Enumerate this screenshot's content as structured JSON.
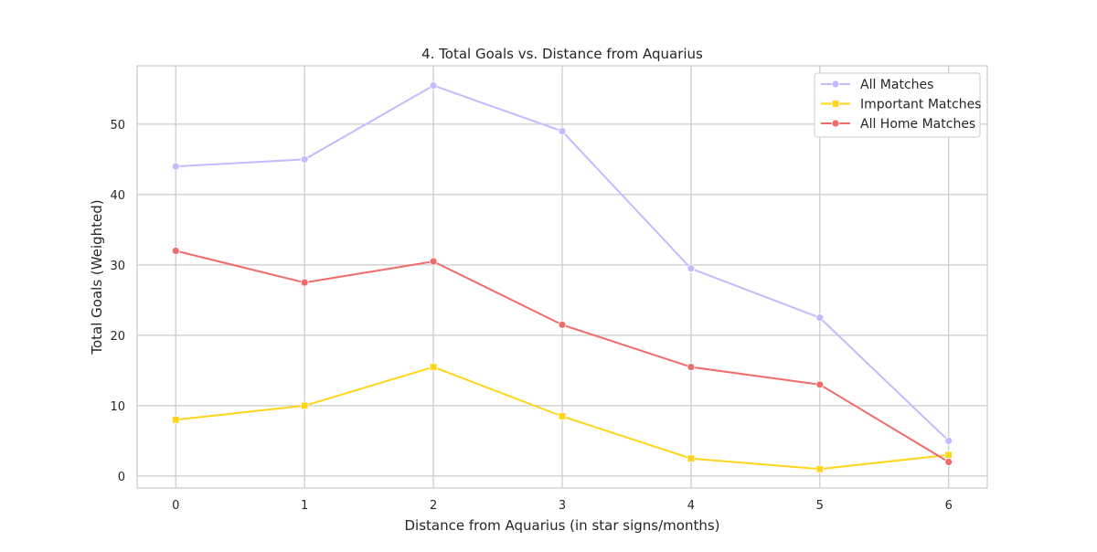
{
  "chart_data": {
    "type": "line",
    "title": "4. Total Goals vs. Distance from Aquarius",
    "xlabel": "Distance from Aquarius (in star signs/months)",
    "ylabel": "Total Goals (Weighted)",
    "x": [
      0,
      1,
      2,
      3,
      4,
      5,
      6
    ],
    "xlim": [
      -0.3,
      6.3
    ],
    "ylim": [
      -1.7,
      58.3
    ],
    "xticks": [
      "0",
      "1",
      "2",
      "3",
      "4",
      "5",
      "6"
    ],
    "yticks": [
      "0",
      "10",
      "20",
      "30",
      "40",
      "50"
    ],
    "ytick_values": [
      0,
      10,
      20,
      30,
      40,
      50
    ],
    "grid": true,
    "legend_position": "top-right",
    "series": [
      {
        "name": "All Matches",
        "values": [
          44,
          45,
          55.5,
          49,
          29.5,
          22.5,
          5
        ],
        "color": "#c8b8ff",
        "marker": "circle"
      },
      {
        "name": "Important Matches",
        "values": [
          8,
          10,
          15.5,
          8.5,
          2.5,
          1,
          3
        ],
        "color": "#ffd51a",
        "marker": "square"
      },
      {
        "name": "All Home Matches",
        "values": [
          32,
          27.5,
          30.5,
          21.5,
          15.5,
          13,
          2
        ],
        "color": "#f26b6b",
        "marker": "circle"
      }
    ]
  }
}
